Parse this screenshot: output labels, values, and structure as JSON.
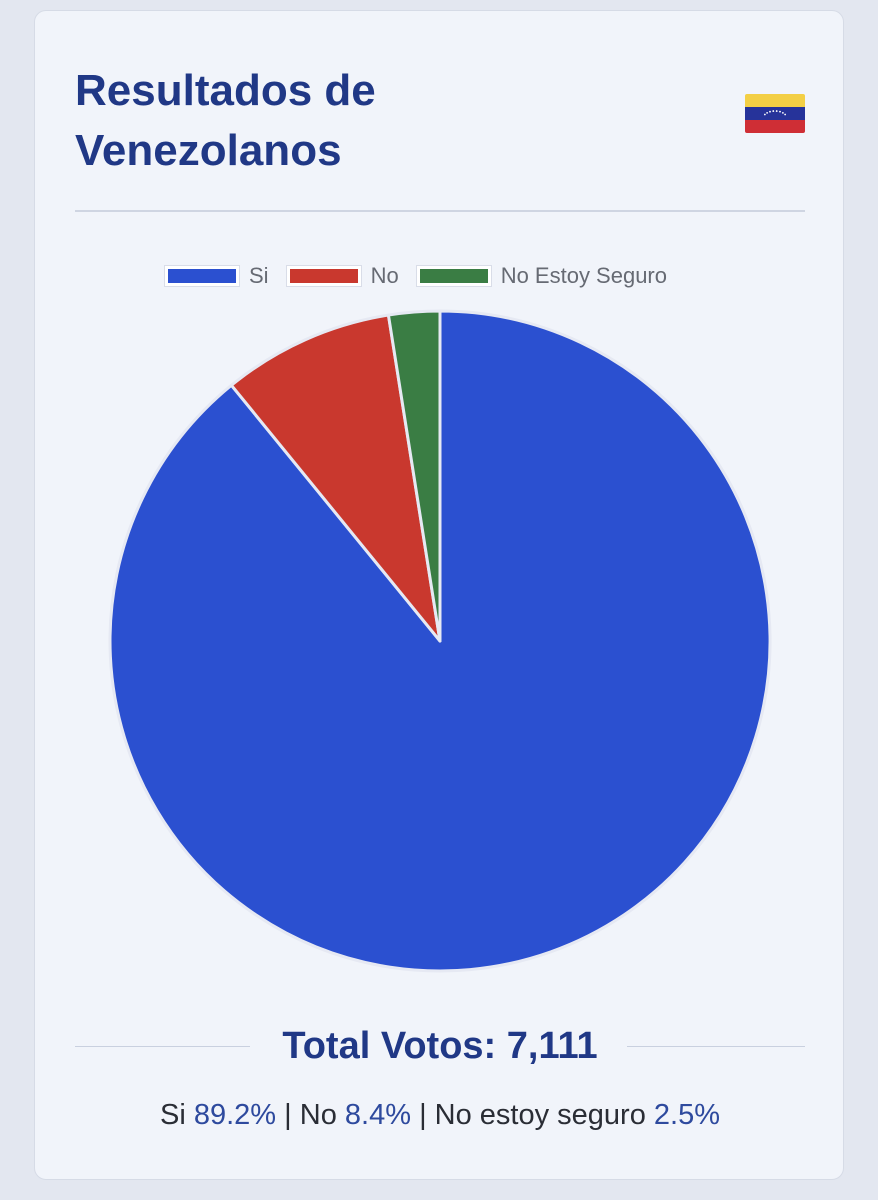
{
  "header": {
    "title": "Resultados de Venezolanos",
    "flag_icon": "venezuela-flag-icon"
  },
  "colors": {
    "accent": "#203886",
    "si": "#2b50d0",
    "no": "#c9382e",
    "unsure": "#3a7d44",
    "flag_yellow": "#f3cf45",
    "flag_blue": "#26339a",
    "flag_red": "#cf2e35"
  },
  "chart_data": {
    "type": "pie",
    "labels": [
      "Si",
      "No",
      "No Estoy Seguro"
    ],
    "values": [
      89.2,
      8.4,
      2.5
    ],
    "colors": [
      "#2b50d0",
      "#c9382e",
      "#3a7d44"
    ],
    "legend_position": "top"
  },
  "total": {
    "text": "Total Votos: 7,111"
  },
  "summary": {
    "si_label": "Si",
    "si_pct": "89.2%",
    "separator": "|",
    "no_label": "No",
    "no_pct": "8.4%",
    "unsure_label": "No estoy seguro",
    "unsure_pct": "2.5%"
  }
}
